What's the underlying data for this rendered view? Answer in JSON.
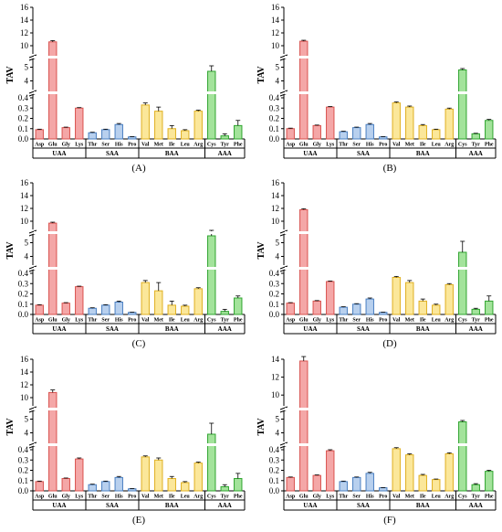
{
  "colors": {
    "UAA": "#f4a7a7",
    "UAA_edge": "#d9534f",
    "SAA": "#b8d0ee",
    "SAA_edge": "#4a7fc1",
    "BAA": "#fbe79a",
    "BAA_edge": "#e0b020",
    "AAA": "#a3e39b",
    "AAA_edge": "#2fa52f"
  },
  "chart_data": [
    {
      "type": "bar",
      "panel": "(A)",
      "ylabel": "TAV",
      "categories": [
        "Asp",
        "Glu",
        "Gly",
        "Lys",
        "Thr",
        "Ser",
        "His",
        "Pro",
        "Val",
        "Met",
        "Ile",
        "Leu",
        "Arg",
        "Cys",
        "Tyr",
        "Phe"
      ],
      "groups": [
        {
          "label": "UAA",
          "count": 4
        },
        {
          "label": "SAA",
          "count": 4
        },
        {
          "label": "BAA",
          "count": 5
        },
        {
          "label": "AAA",
          "count": 3
        }
      ],
      "y_segments": [
        {
          "range": [
            0,
            0.4
          ],
          "ticks": [
            0.0,
            0.1,
            0.2,
            0.3,
            0.4
          ]
        },
        {
          "range": [
            3.5,
            5.5
          ],
          "ticks": [
            4,
            5
          ]
        },
        {
          "range": [
            9,
            16
          ],
          "ticks": [
            10,
            12,
            14,
            16
          ]
        }
      ],
      "values": [
        0.09,
        10.6,
        0.11,
        0.3,
        0.06,
        0.09,
        0.14,
        0.02,
        0.33,
        0.27,
        0.1,
        0.08,
        0.27,
        4.7,
        0.03,
        0.13
      ],
      "errors": [
        0.005,
        0.2,
        0.005,
        0.005,
        0.005,
        0.005,
        0.01,
        0.002,
        0.02,
        0.04,
        0.03,
        0.01,
        0.01,
        0.4,
        0.02,
        0.05
      ]
    },
    {
      "type": "bar",
      "panel": "(B)",
      "ylabel": "TAV",
      "categories": [
        "Asp",
        "Glu",
        "Gly",
        "Lys",
        "Thr",
        "Ser",
        "His",
        "Pro",
        "Val",
        "Met",
        "Ile",
        "Leu",
        "Arg",
        "Cys",
        "Tyr",
        "Phe"
      ],
      "groups": [
        {
          "label": "UAA",
          "count": 4
        },
        {
          "label": "SAA",
          "count": 4
        },
        {
          "label": "BAA",
          "count": 5
        },
        {
          "label": "AAA",
          "count": 3
        }
      ],
      "y_segments": [
        {
          "range": [
            0,
            0.4
          ],
          "ticks": [
            0.0,
            0.1,
            0.2,
            0.3,
            0.4
          ]
        },
        {
          "range": [
            3.5,
            5.5
          ],
          "ticks": [
            4,
            5
          ]
        },
        {
          "range": [
            9,
            16
          ],
          "ticks": [
            10,
            12,
            14,
            16
          ]
        }
      ],
      "values": [
        0.1,
        10.7,
        0.13,
        0.31,
        0.07,
        0.11,
        0.14,
        0.02,
        0.35,
        0.31,
        0.13,
        0.09,
        0.29,
        4.8,
        0.05,
        0.18
      ],
      "errors": [
        0.005,
        0.15,
        0.005,
        0.005,
        0.005,
        0.005,
        0.01,
        0.002,
        0.01,
        0.01,
        0.01,
        0.005,
        0.01,
        0.1,
        0.005,
        0.01
      ]
    },
    {
      "type": "bar",
      "panel": "(C)",
      "ylabel": "TAV",
      "categories": [
        "Asp",
        "Glu",
        "Gly",
        "Lys",
        "Thr",
        "Ser",
        "His",
        "Pro",
        "Val",
        "Met",
        "Ile",
        "Leu",
        "Arg",
        "Cys",
        "Tyr",
        "Phe"
      ],
      "groups": [
        {
          "label": "UAA",
          "count": 4
        },
        {
          "label": "SAA",
          "count": 4
        },
        {
          "label": "BAA",
          "count": 5
        },
        {
          "label": "AAA",
          "count": 3
        }
      ],
      "y_segments": [
        {
          "range": [
            0,
            0.4
          ],
          "ticks": [
            0.0,
            0.1,
            0.2,
            0.3,
            0.4
          ]
        },
        {
          "range": [
            3.5,
            5.5
          ],
          "ticks": [
            4,
            5
          ]
        },
        {
          "range": [
            9,
            16
          ],
          "ticks": [
            10,
            12,
            14,
            16
          ]
        }
      ],
      "values": [
        0.09,
        9.7,
        0.11,
        0.27,
        0.06,
        0.09,
        0.12,
        0.02,
        0.31,
        0.23,
        0.09,
        0.08,
        0.25,
        5.5,
        0.03,
        0.16
      ],
      "errors": [
        0.005,
        0.15,
        0.005,
        0.005,
        0.005,
        0.005,
        0.01,
        0.002,
        0.02,
        0.08,
        0.04,
        0.01,
        0.01,
        0.5,
        0.02,
        0.02
      ]
    },
    {
      "type": "bar",
      "panel": "(D)",
      "ylabel": "TAV",
      "categories": [
        "Asp",
        "Glu",
        "Gly",
        "Lys",
        "Thr",
        "Ser",
        "His",
        "Pro",
        "Val",
        "Met",
        "Ile",
        "Leu",
        "Arg",
        "Cys",
        "Tyr",
        "Phe"
      ],
      "groups": [
        {
          "label": "UAA",
          "count": 4
        },
        {
          "label": "SAA",
          "count": 4
        },
        {
          "label": "BAA",
          "count": 5
        },
        {
          "label": "AAA",
          "count": 3
        }
      ],
      "y_segments": [
        {
          "range": [
            0,
            0.4
          ],
          "ticks": [
            0.0,
            0.1,
            0.2,
            0.3,
            0.4
          ]
        },
        {
          "range": [
            3.5,
            5.5
          ],
          "ticks": [
            4,
            5
          ]
        },
        {
          "range": [
            9,
            16
          ],
          "ticks": [
            10,
            12,
            14,
            16
          ]
        }
      ],
      "values": [
        0.11,
        11.8,
        0.13,
        0.32,
        0.07,
        0.1,
        0.15,
        0.02,
        0.36,
        0.31,
        0.13,
        0.09,
        0.29,
        4.3,
        0.05,
        0.13
      ],
      "errors": [
        0.005,
        0.15,
        0.005,
        0.005,
        0.005,
        0.005,
        0.01,
        0.002,
        0.01,
        0.02,
        0.02,
        0.01,
        0.01,
        0.8,
        0.01,
        0.05
      ]
    },
    {
      "type": "bar",
      "panel": "(E)",
      "ylabel": "TAV",
      "categories": [
        "Asp",
        "Glu",
        "Gly",
        "Lys",
        "Thr",
        "Ser",
        "His",
        "Pro",
        "Val",
        "Met",
        "Ile",
        "Leu",
        "Arg",
        "Cys",
        "Tyr",
        "Phe"
      ],
      "groups": [
        {
          "label": "UAA",
          "count": 4
        },
        {
          "label": "SAA",
          "count": 4
        },
        {
          "label": "BAA",
          "count": 5
        },
        {
          "label": "AAA",
          "count": 3
        }
      ],
      "y_segments": [
        {
          "range": [
            0,
            0.4
          ],
          "ticks": [
            0.0,
            0.1,
            0.2,
            0.3,
            0.4
          ]
        },
        {
          "range": [
            3.5,
            5.5
          ],
          "ticks": [
            4,
            5
          ]
        },
        {
          "range": [
            9,
            16
          ],
          "ticks": [
            10,
            12,
            14,
            16
          ]
        }
      ],
      "values": [
        0.09,
        10.8,
        0.12,
        0.31,
        0.06,
        0.09,
        0.13,
        0.02,
        0.33,
        0.3,
        0.12,
        0.08,
        0.27,
        3.9,
        0.04,
        0.12
      ],
      "errors": [
        0.005,
        0.4,
        0.005,
        0.01,
        0.005,
        0.005,
        0.01,
        0.002,
        0.01,
        0.02,
        0.02,
        0.01,
        0.01,
        0.8,
        0.02,
        0.05
      ]
    },
    {
      "type": "bar",
      "panel": "(F)",
      "ylabel": "TAV",
      "categories": [
        "Asp",
        "Glu",
        "Gly",
        "Lys",
        "Thr",
        "Ser",
        "His",
        "Pro",
        "Val",
        "Met",
        "Ile",
        "Leu",
        "Arg",
        "Cys",
        "Tyr",
        "Phe"
      ],
      "groups": [
        {
          "label": "UAA",
          "count": 4
        },
        {
          "label": "SAA",
          "count": 4
        },
        {
          "label": "BAA",
          "count": 5
        },
        {
          "label": "AAA",
          "count": 3
        }
      ],
      "y_segments": [
        {
          "range": [
            0,
            0.4
          ],
          "ticks": [
            0.0,
            0.1,
            0.2,
            0.3,
            0.4
          ]
        },
        {
          "range": [
            3.5,
            5.5
          ],
          "ticks": [
            4,
            5
          ]
        },
        {
          "range": [
            9,
            14
          ],
          "ticks": [
            10,
            12,
            14
          ]
        }
      ],
      "values": [
        0.13,
        13.8,
        0.15,
        0.39,
        0.09,
        0.13,
        0.17,
        0.03,
        0.41,
        0.35,
        0.15,
        0.11,
        0.36,
        4.8,
        0.06,
        0.19
      ],
      "errors": [
        0.005,
        0.5,
        0.005,
        0.01,
        0.005,
        0.005,
        0.01,
        0.002,
        0.01,
        0.01,
        0.01,
        0.005,
        0.01,
        0.1,
        0.01,
        0.01
      ]
    }
  ]
}
